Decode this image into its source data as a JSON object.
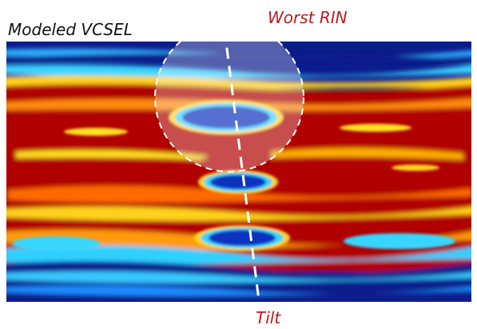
{
  "labels": {
    "title": "Modeled VCSEL",
    "top_annotation": "Worst RIN",
    "bottom_annotation": "Tilt"
  }
}
